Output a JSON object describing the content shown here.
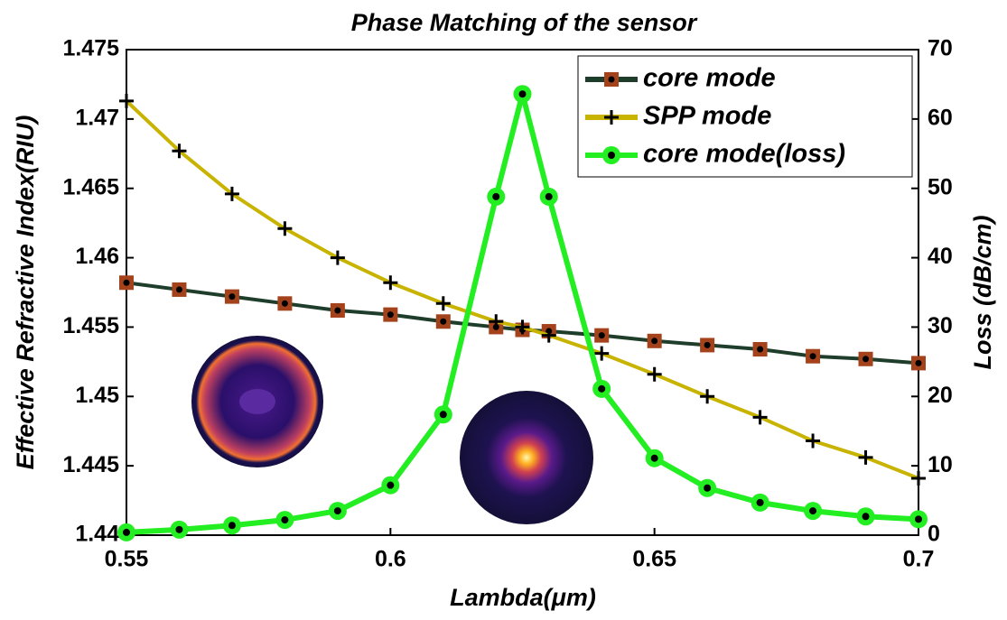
{
  "chart_data": {
    "type": "line",
    "title": "Phase Matching of the sensor",
    "xlabel": "Lambda(μm)",
    "ylabel": "Effective Refractive Index(RIU)",
    "y2label": "Loss (dB/cm)",
    "x": [
      0.55,
      0.56,
      0.57,
      0.58,
      0.59,
      0.6,
      0.61,
      0.62,
      0.625,
      0.63,
      0.64,
      0.65,
      0.66,
      0.67,
      0.68,
      0.69,
      0.7
    ],
    "series": [
      {
        "name": "core mode",
        "color": "#1e3d2a",
        "marker": "square",
        "marker_color": "#a4421c",
        "values": [
          1.4582,
          1.4577,
          1.4572,
          1.4567,
          1.4562,
          1.4559,
          1.4554,
          1.455,
          1.4548,
          1.4547,
          1.4544,
          1.454,
          1.4537,
          1.4534,
          1.4529,
          1.4527,
          1.4524
        ]
      },
      {
        "name": "SPP mode",
        "color": "#c8b400",
        "marker": "plus",
        "marker_color": "#000000",
        "values": [
          1.4713,
          1.4677,
          1.4646,
          1.4621,
          1.46,
          1.4582,
          1.4567,
          1.4554,
          1.455,
          1.4544,
          1.4531,
          1.4516,
          1.45,
          1.4485,
          1.4468,
          1.4456,
          1.4441
        ]
      },
      {
        "name": "core mode(loss)",
        "color": "#22ee22",
        "marker": "circle",
        "marker_color": "#000000",
        "axis": "y2",
        "values": [
          0.4,
          0.8,
          1.4,
          2.2,
          3.5,
          7.2,
          17.4,
          48.8,
          63.6,
          48.8,
          21.1,
          11.1,
          6.8,
          4.7,
          3.5,
          2.7,
          2.3
        ]
      }
    ],
    "xlim": [
      0.55,
      0.7
    ],
    "xticks": [
      0.55,
      0.6,
      0.65,
      0.7
    ],
    "ylim": [
      1.44,
      1.475
    ],
    "yticks": [
      1.44,
      1.445,
      1.45,
      1.455,
      1.46,
      1.465,
      1.47,
      1.475
    ],
    "y2lim": [
      0,
      70
    ],
    "y2ticks": [
      0,
      10,
      20,
      30,
      40,
      50,
      60,
      70
    ],
    "legend": "upper right",
    "grid": false
  }
}
